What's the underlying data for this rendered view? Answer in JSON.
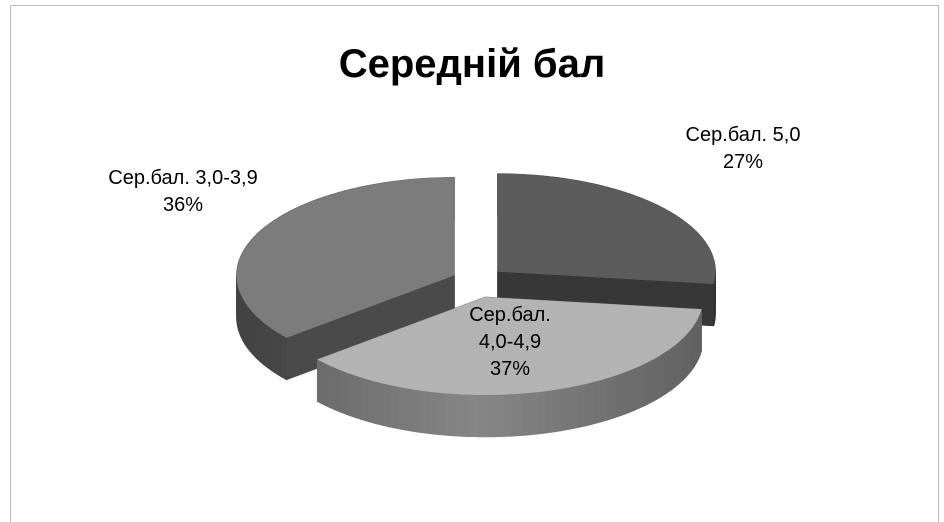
{
  "chart_data": {
    "type": "pie",
    "title": "Середній бал",
    "categories": [
      "Сер.бал. 5,0",
      "Сер.бал. 4,0-4,9",
      "Сер.бал. 3,0-3,9"
    ],
    "values": [
      27,
      37,
      36
    ],
    "value_labels": [
      "27%",
      "37%",
      "36%"
    ],
    "colors": [
      "#5c5c5c",
      "#b3b3b3",
      "#7c7c7c"
    ]
  }
}
